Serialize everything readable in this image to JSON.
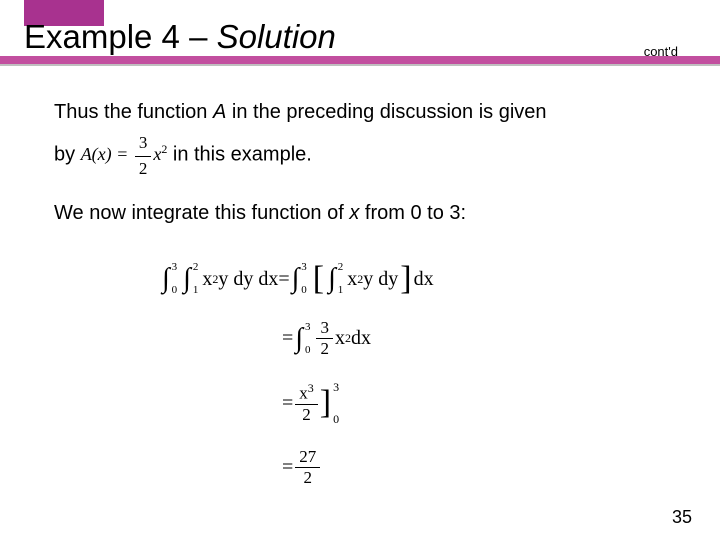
{
  "header": {
    "title_prefix": "Example 4 – ",
    "title_italic": "Solution",
    "contd": "cont'd",
    "accent_block_color": "#a8328f",
    "bar_color": "#c24f9f"
  },
  "body": {
    "para1_a": "Thus the function ",
    "para1_var": "A",
    "para1_b": " in the preceding discussion is given",
    "para2_a": "by ",
    "inline_eq_lhs": "A(x) = ",
    "inline_frac_num": "3",
    "inline_frac_den": "2",
    "inline_eq_rhs": "x",
    "inline_sup": "2",
    "para2_b": " in this example.",
    "para3_a": "We now integrate this function of ",
    "para3_var": "x",
    "para3_b": " from 0 to 3:"
  },
  "equations": {
    "outer_lower": "0",
    "outer_upper": "3",
    "inner_lower": "1",
    "inner_upper": "2",
    "integrand_lhs": "x",
    "sup2": "2",
    "integrand_y": "y dy dx",
    "eq": " = ",
    "dy": "y dy",
    "dx": " dx",
    "frac32_num": "3",
    "frac32_den": "2",
    "x2dx": "x",
    "line3_num": "x",
    "line3_sup": "3",
    "line3_den": "2",
    "line4_num": "27",
    "line4_den": "2"
  },
  "page_number": "35"
}
